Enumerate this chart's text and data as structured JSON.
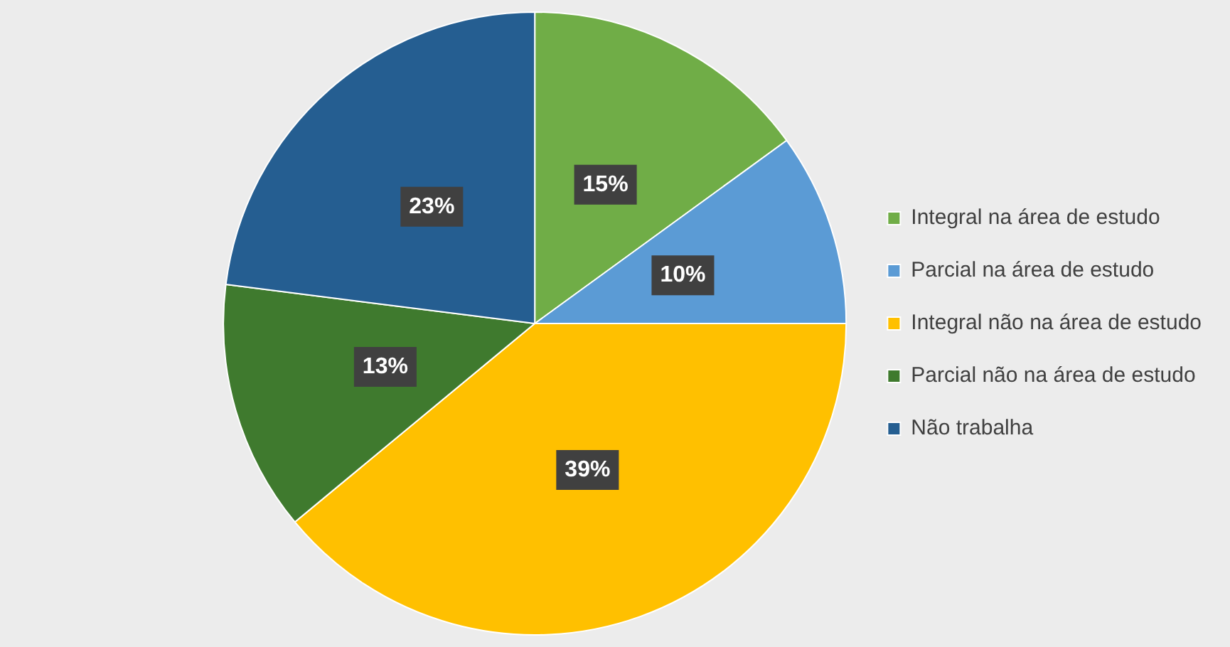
{
  "chart_data": {
    "type": "pie",
    "categories": [
      "Integral na área de estudo",
      "Parcial na área de estudo",
      "Integral não na área de estudo",
      "Parcial não na área de estudo",
      "Não trabalha"
    ],
    "values": [
      15,
      10,
      39,
      13,
      23
    ],
    "value_labels": [
      "15%",
      "10%",
      "39%",
      "13%",
      "23%"
    ],
    "colors": [
      "#70ad47",
      "#5b9bd5",
      "#ffc000",
      "#3f7a2e",
      "#255e91"
    ],
    "legend": "right"
  }
}
